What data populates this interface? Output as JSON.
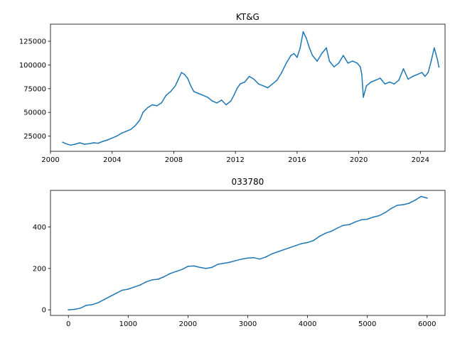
{
  "chart_data": [
    {
      "type": "line",
      "title": "KT&G",
      "xlabel": "",
      "ylabel": "",
      "x_is_date": true,
      "xlim": [
        2000.0,
        2025.6
      ],
      "ylim": [
        9000,
        143000
      ],
      "xticks": [
        2000,
        2004,
        2008,
        2012,
        2016,
        2020,
        2024
      ],
      "xtick_labels": [
        "2000",
        "2004",
        "2008",
        "2012",
        "2016",
        "2020",
        "2024"
      ],
      "yticks": [
        25000,
        50000,
        75000,
        100000,
        125000
      ],
      "ytick_labels": [
        "25000",
        "50000",
        "75000",
        "100000",
        "125000"
      ],
      "series": [
        {
          "color": "#1f77b4",
          "x": [
            2000.8,
            2001.0,
            2001.3,
            2001.6,
            2001.9,
            2002.2,
            2002.5,
            2002.8,
            2003.1,
            2003.4,
            2003.7,
            2004.0,
            2004.3,
            2004.6,
            2004.9,
            2005.2,
            2005.5,
            2005.8,
            2006.0,
            2006.3,
            2006.6,
            2006.9,
            2007.2,
            2007.5,
            2007.8,
            2008.1,
            2008.3,
            2008.5,
            2008.7,
            2008.9,
            2009.1,
            2009.3,
            2009.6,
            2009.9,
            2010.2,
            2010.5,
            2010.8,
            2011.1,
            2011.4,
            2011.7,
            2011.9,
            2012.1,
            2012.3,
            2012.6,
            2012.9,
            2013.2,
            2013.5,
            2013.8,
            2014.1,
            2014.4,
            2014.7,
            2015.0,
            2015.3,
            2015.6,
            2015.8,
            2016.0,
            2016.2,
            2016.4,
            2016.6,
            2016.8,
            2017.0,
            2017.3,
            2017.6,
            2017.9,
            2018.1,
            2018.4,
            2018.7,
            2019.0,
            2019.3,
            2019.6,
            2019.9,
            2020.1,
            2020.2,
            2020.3,
            2020.5,
            2020.8,
            2021.1,
            2021.4,
            2021.7,
            2022.0,
            2022.3,
            2022.6,
            2022.9,
            2023.2,
            2023.5,
            2023.8,
            2024.1,
            2024.3,
            2024.5,
            2024.7,
            2024.9,
            2025.0,
            2025.1,
            2025.2
          ],
          "y": [
            18500,
            17000,
            15500,
            16500,
            18000,
            16500,
            17000,
            18000,
            17500,
            19500,
            21000,
            23000,
            25000,
            28000,
            30000,
            32000,
            36000,
            42000,
            50000,
            55000,
            58000,
            57000,
            60000,
            68000,
            72000,
            78000,
            85000,
            92000,
            90000,
            86000,
            78000,
            72000,
            70000,
            68000,
            66000,
            62000,
            60000,
            63000,
            58000,
            62000,
            68000,
            75000,
            80000,
            82000,
            88000,
            85000,
            80000,
            78000,
            76000,
            80000,
            84000,
            92000,
            102000,
            110000,
            112000,
            108000,
            118000,
            135000,
            128000,
            118000,
            110000,
            104000,
            112000,
            118000,
            104000,
            98000,
            102000,
            110000,
            102000,
            104000,
            102000,
            98000,
            90000,
            66000,
            78000,
            82000,
            84000,
            86000,
            80000,
            82000,
            80000,
            84000,
            96000,
            85000,
            88000,
            90000,
            92000,
            88000,
            92000,
            104000,
            118000,
            112000,
            106000,
            98000
          ]
        }
      ]
    },
    {
      "type": "line",
      "title": "033780",
      "xlabel": "",
      "ylabel": "",
      "xlim": [
        -300,
        6300
      ],
      "ylim": [
        -27,
        577
      ],
      "xticks": [
        0,
        1000,
        2000,
        3000,
        4000,
        5000,
        6000
      ],
      "xtick_labels": [
        "0",
        "1000",
        "2000",
        "3000",
        "4000",
        "5000",
        "6000"
      ],
      "yticks": [
        0,
        200,
        400
      ],
      "ytick_labels": [
        "0",
        "200",
        "400"
      ],
      "series": [
        {
          "color": "#1f77b4",
          "x": [
            0,
            100,
            200,
            300,
            400,
            500,
            600,
            700,
            800,
            900,
            1000,
            1100,
            1200,
            1300,
            1400,
            1500,
            1600,
            1700,
            1800,
            1900,
            2000,
            2100,
            2200,
            2300,
            2400,
            2500,
            2600,
            2700,
            2800,
            2900,
            3000,
            3100,
            3200,
            3300,
            3400,
            3500,
            3600,
            3700,
            3800,
            3900,
            4000,
            4100,
            4200,
            4300,
            4400,
            4500,
            4600,
            4700,
            4800,
            4900,
            5000,
            5100,
            5200,
            5300,
            5400,
            5500,
            5600,
            5700,
            5800,
            5900,
            6000
          ],
          "y": [
            0,
            2,
            8,
            22,
            25,
            35,
            50,
            65,
            80,
            95,
            100,
            110,
            120,
            135,
            145,
            148,
            160,
            175,
            185,
            195,
            210,
            212,
            205,
            200,
            205,
            220,
            225,
            230,
            238,
            245,
            250,
            252,
            245,
            255,
            270,
            280,
            290,
            300,
            310,
            320,
            325,
            335,
            355,
            370,
            380,
            395,
            408,
            412,
            425,
            435,
            438,
            448,
            455,
            470,
            490,
            505,
            508,
            515,
            530,
            548,
            540
          ]
        }
      ]
    }
  ]
}
